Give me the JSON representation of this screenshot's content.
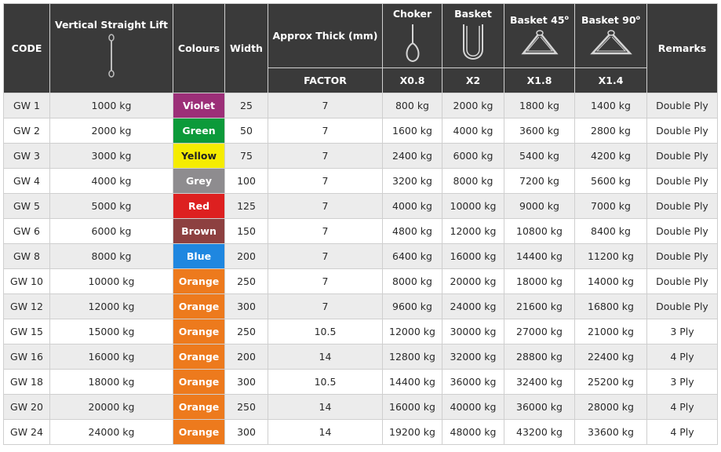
{
  "headers": {
    "code": "CODE",
    "vertical": "Vertical Straight Lift",
    "colours": "Colours",
    "width": "Width",
    "thick": "Approx Thick (mm)",
    "choker": "Choker",
    "basket": "Basket",
    "basket45": "Basket 45",
    "basket45_sup": "o",
    "basket90": "Basket 90",
    "basket90_sup": "o",
    "remarks": "Remarks",
    "factor": "FACTOR",
    "choker_factor": "X0.8",
    "basket_factor": "X2",
    "basket45_factor": "X1.8",
    "basket90_factor": "X1.4"
  },
  "rows": [
    {
      "code": "GW 1",
      "vertical": "1000 kg",
      "colour": "Violet",
      "colour_hex": "#9c2f78",
      "width": "25",
      "thick": "7",
      "choker": "800 kg",
      "basket": "2000 kg",
      "b45": "1800 kg",
      "b90": "1400 kg",
      "remarks": "Double Ply"
    },
    {
      "code": "GW 2",
      "vertical": "2000 kg",
      "colour": "Green",
      "colour_hex": "#0c9a3a",
      "width": "50",
      "thick": "7",
      "choker": "1600 kg",
      "basket": "4000 kg",
      "b45": "3600 kg",
      "b90": "2800 kg",
      "remarks": "Double Ply"
    },
    {
      "code": "GW 3",
      "vertical": "3000 kg",
      "colour": "Yellow",
      "colour_hex": "#f5ec00",
      "width": "75",
      "thick": "7",
      "choker": "2400 kg",
      "basket": "6000 kg",
      "b45": "5400 kg",
      "b90": "4200 kg",
      "remarks": "Double Ply"
    },
    {
      "code": "GW 4",
      "vertical": "4000 kg",
      "colour": "Grey",
      "colour_hex": "#8e8c8f",
      "width": "100",
      "thick": "7",
      "choker": "3200 kg",
      "basket": "8000 kg",
      "b45": "7200 kg",
      "b90": "5600 kg",
      "remarks": "Double Ply"
    },
    {
      "code": "GW 5",
      "vertical": "5000 kg",
      "colour": "Red",
      "colour_hex": "#dd2020",
      "width": "125",
      "thick": "7",
      "choker": "4000 kg",
      "basket": "10000 kg",
      "b45": "9000 kg",
      "b90": "7000 kg",
      "remarks": "Double Ply"
    },
    {
      "code": "GW 6",
      "vertical": "6000 kg",
      "colour": "Brown",
      "colour_hex": "#8d4040",
      "width": "150",
      "thick": "7",
      "choker": "4800 kg",
      "basket": "12000 kg",
      "b45": "10800 kg",
      "b90": "8400 kg",
      "remarks": "Double Ply"
    },
    {
      "code": "GW 8",
      "vertical": "8000 kg",
      "colour": "Blue",
      "colour_hex": "#1f87e0",
      "width": "200",
      "thick": "7",
      "choker": "6400 kg",
      "basket": "16000 kg",
      "b45": "14400 kg",
      "b90": "11200 kg",
      "remarks": "Double Ply"
    },
    {
      "code": "GW 10",
      "vertical": "10000 kg",
      "colour": "Orange",
      "colour_hex": "#ed7a1d",
      "width": "250",
      "thick": "7",
      "choker": "8000 kg",
      "basket": "20000 kg",
      "b45": "18000 kg",
      "b90": "14000 kg",
      "remarks": "Double Ply"
    },
    {
      "code": "GW 12",
      "vertical": "12000 kg",
      "colour": "Orange",
      "colour_hex": "#ed7a1d",
      "width": "300",
      "thick": "7",
      "choker": "9600 kg",
      "basket": "24000 kg",
      "b45": "21600 kg",
      "b90": "16800 kg",
      "remarks": "Double Ply"
    },
    {
      "code": "GW 15",
      "vertical": "15000 kg",
      "colour": "Orange",
      "colour_hex": "#ed7a1d",
      "width": "250",
      "thick": "10.5",
      "choker": "12000 kg",
      "basket": "30000 kg",
      "b45": "27000 kg",
      "b90": "21000 kg",
      "remarks": "3 Ply"
    },
    {
      "code": "GW 16",
      "vertical": "16000 kg",
      "colour": "Orange",
      "colour_hex": "#ed7a1d",
      "width": "200",
      "thick": "14",
      "choker": "12800 kg",
      "basket": "32000 kg",
      "b45": "28800 kg",
      "b90": "22400 kg",
      "remarks": "4 Ply"
    },
    {
      "code": "GW 18",
      "vertical": "18000 kg",
      "colour": "Orange",
      "colour_hex": "#ed7a1d",
      "width": "300",
      "thick": "10.5",
      "choker": "14400 kg",
      "basket": "36000 kg",
      "b45": "32400 kg",
      "b90": "25200 kg",
      "remarks": "3 Ply"
    },
    {
      "code": "GW 20",
      "vertical": "20000 kg",
      "colour": "Orange",
      "colour_hex": "#ed7a1d",
      "width": "250",
      "thick": "14",
      "choker": "16000 kg",
      "basket": "40000 kg",
      "b45": "36000 kg",
      "b90": "28000 kg",
      "remarks": "4 Ply"
    },
    {
      "code": "GW 24",
      "vertical": "24000 kg",
      "colour": "Orange",
      "colour_hex": "#ed7a1d",
      "width": "300",
      "thick": "14",
      "choker": "19200 kg",
      "basket": "48000 kg",
      "b45": "43200 kg",
      "b90": "33600 kg",
      "remarks": "4 Ply"
    }
  ]
}
